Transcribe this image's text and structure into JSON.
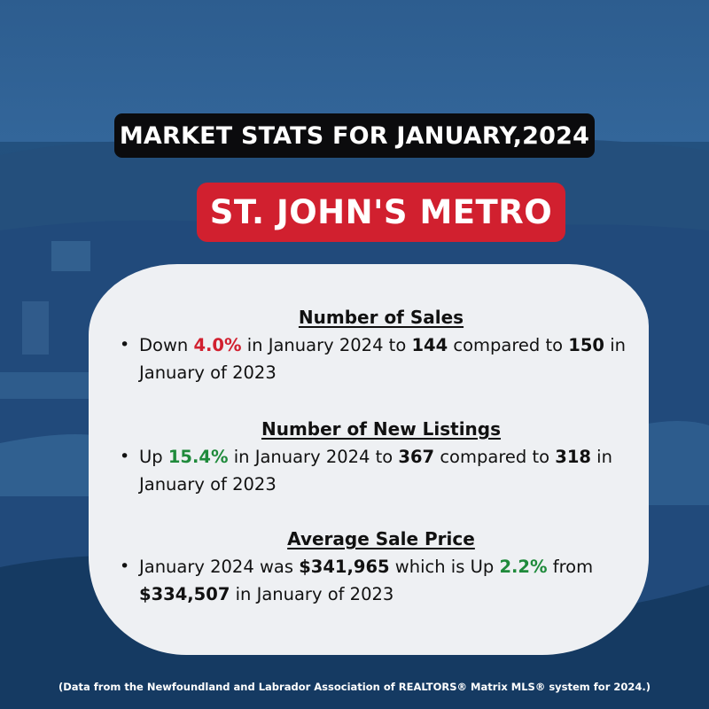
{
  "header": {
    "title": "MARKET STATS FOR JANUARY,2024",
    "region": "ST. JOHN'S METRO"
  },
  "sections": [
    {
      "title": "Number of Sales",
      "parts": [
        "Down ",
        "4.0%",
        " in January 2024 to ",
        "144",
        " compared to ",
        "150",
        " in January of 2023"
      ]
    },
    {
      "title": "Number of New Listings",
      "parts": [
        "Up ",
        "15.4%",
        " in January 2024 to ",
        "367",
        " compared to ",
        "318",
        " in January of 2023"
      ]
    },
    {
      "title": "Average Sale Price",
      "parts": [
        "January 2024 was ",
        "$341,965",
        " which is Up ",
        "2.2%",
        " from ",
        "$334,507",
        " in January of 2023"
      ]
    }
  ],
  "footer": "(Data from the Newfoundland and Labrador Association of REALTORS® Matrix MLS® system for 2024.)",
  "colors": {
    "negative": "#d1202f",
    "positive": "#1f8a3b",
    "region_pill": "#d1202f",
    "title_pill": "#0b0b0d",
    "background": "#1f4b78"
  }
}
